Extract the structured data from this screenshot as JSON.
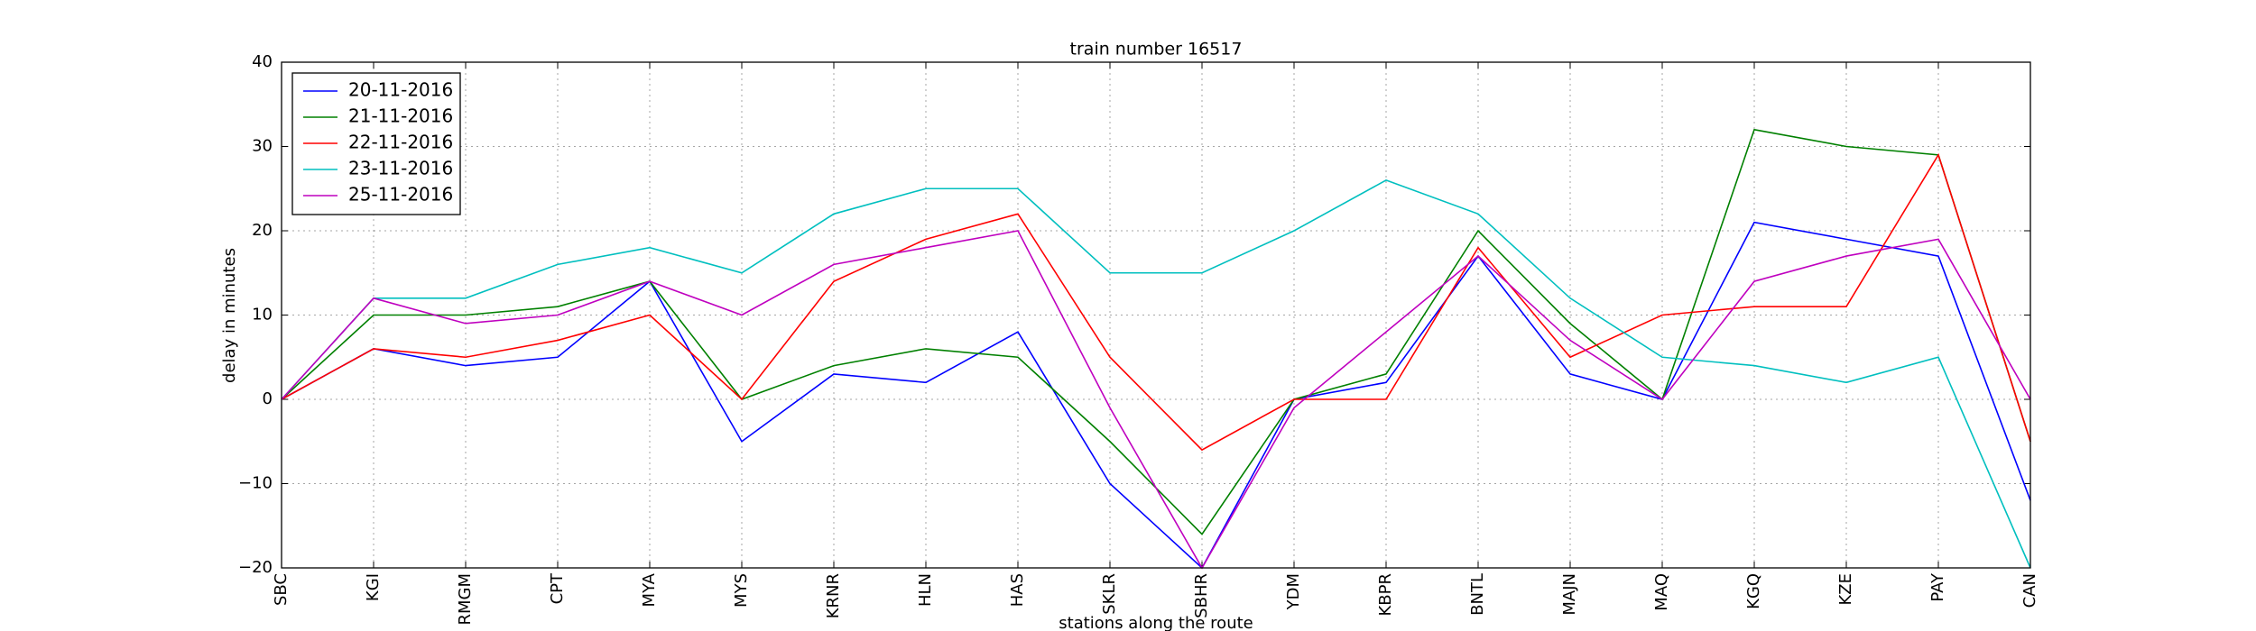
{
  "chart_data": {
    "type": "line",
    "title": "train number 16517",
    "xlabel": "stations along the route",
    "ylabel": "delay in minutes",
    "categories": [
      "SBC",
      "KGI",
      "RMGM",
      "CPT",
      "MYA",
      "MYS",
      "KRNR",
      "HLN",
      "HAS",
      "SKLR",
      "SBHR",
      "YDM",
      "KBPR",
      "BNTL",
      "MAJN",
      "MAQ",
      "KGQ",
      "KZE",
      "PAY",
      "CAN"
    ],
    "series": [
      {
        "name": "20-11-2016",
        "color": "#0000ff",
        "values": [
          0,
          6,
          4,
          5,
          14,
          -5,
          3,
          2,
          8,
          -10,
          -20,
          0,
          2,
          17,
          3,
          0,
          21,
          19,
          17,
          -12
        ]
      },
      {
        "name": "21-11-2016",
        "color": "#008000",
        "values": [
          0,
          10,
          10,
          11,
          14,
          0,
          4,
          6,
          5,
          -5,
          -16,
          0,
          3,
          20,
          9,
          0,
          32,
          30,
          29,
          -5
        ]
      },
      {
        "name": "22-11-2016",
        "color": "#ff0000",
        "values": [
          0,
          6,
          5,
          7,
          10,
          0,
          14,
          19,
          22,
          5,
          -6,
          0,
          0,
          18,
          5,
          10,
          11,
          11,
          29,
          -5
        ]
      },
      {
        "name": "23-11-2016",
        "color": "#00bfbf",
        "values": [
          0,
          12,
          12,
          16,
          18,
          15,
          22,
          25,
          25,
          15,
          15,
          20,
          26,
          22,
          12,
          5,
          4,
          2,
          5,
          -20
        ]
      },
      {
        "name": "25-11-2016",
        "color": "#bf00bf",
        "values": [
          0,
          12,
          9,
          10,
          14,
          10,
          16,
          18,
          20,
          -1,
          -20,
          -1,
          8,
          17,
          7,
          0,
          14,
          17,
          19,
          0
        ]
      }
    ],
    "ylim": [
      -20,
      40
    ],
    "yticks": [
      {
        "value": -20,
        "label": "−20"
      },
      {
        "value": -10,
        "label": "−10"
      },
      0,
      10,
      20,
      30,
      40
    ],
    "grid": true,
    "legend": "upper left"
  }
}
